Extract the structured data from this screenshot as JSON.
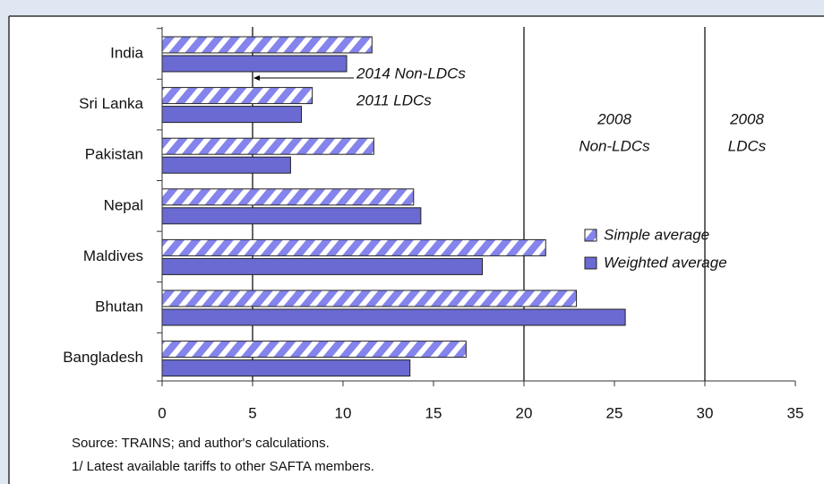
{
  "chart_data": {
    "type": "bar",
    "categories": [
      "India",
      "Sri Lanka",
      "Pakistan",
      "Nepal",
      "Maldives",
      "Bhutan",
      "Bangladesh"
    ],
    "series": [
      {
        "name": "Simple average",
        "color": "#8484ec",
        "pattern": "hatch",
        "values": [
          11.6,
          8.3,
          11.7,
          13.9,
          21.2,
          22.9,
          16.8
        ]
      },
      {
        "name": "Weighted average",
        "color": "#6a6ad2",
        "values": [
          10.2,
          7.7,
          7.1,
          14.3,
          17.7,
          25.6,
          13.7
        ]
      }
    ],
    "xlim": [
      0,
      35
    ],
    "xticks": [
      0,
      5,
      10,
      15,
      20,
      25,
      30,
      35
    ],
    "reference_lines": [
      5,
      20,
      30
    ],
    "annotations": [
      "2014 Non-LDCs",
      "2011 LDCs",
      "2008",
      "Non-LDCs",
      "2008",
      "LDCs"
    ],
    "notes": [
      "Source: TRAINS; and author's calculations.",
      "1/ Latest available tariffs to other SAFTA members."
    ]
  }
}
